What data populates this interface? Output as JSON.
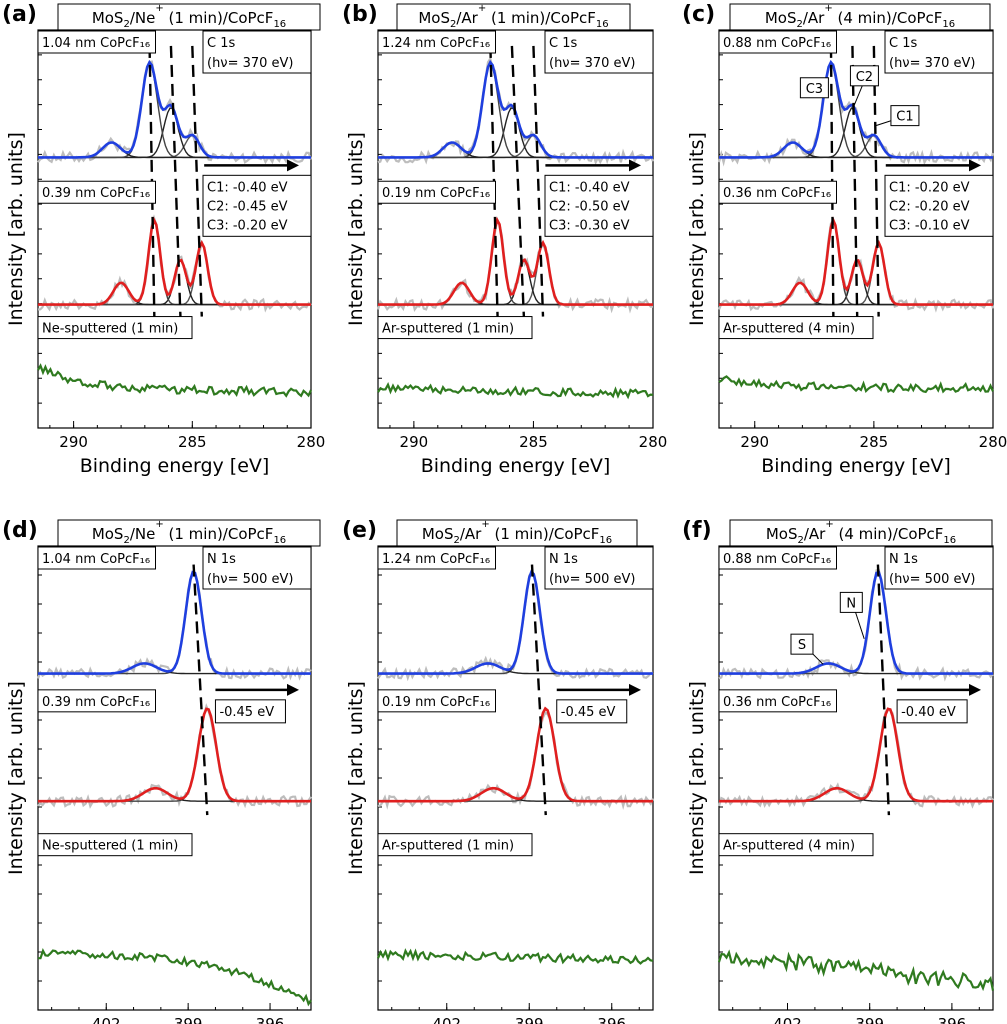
{
  "chart_data": [
    {
      "panel": "(a)",
      "type": "line",
      "title": "MoS₂/Ne⁺ (1 min)/CoPcF₁₆",
      "title_parts": [
        "MoS",
        "2",
        "/Ne",
        "+",
        " (1 min)/CoPcF",
        "16"
      ],
      "core_level": "C 1s",
      "photon_energy": "(hν= 370 eV)",
      "xlabel": "Binding energy [eV]",
      "ylabel": "Intensity [arb. units]",
      "xlim": [
        291.5,
        280
      ],
      "xticks": [
        "290",
        "285",
        "280"
      ],
      "spectra": [
        {
          "label": "1.04 nm CoPcF₁₆",
          "color": "#1f3fdf",
          "peaks": [
            {
              "name": "C1",
              "x": 285.0
            },
            {
              "name": "C2",
              "x": 285.9
            },
            {
              "name": "C3",
              "x": 286.8
            },
            {
              "name": "",
              "x": 288.4
            }
          ]
        },
        {
          "label": "0.39 nm CoPcF₁₆",
          "color": "#e01f1f",
          "peaks": [
            {
              "name": "C1",
              "x": 284.6
            },
            {
              "name": "C2",
              "x": 285.5
            },
            {
              "name": "C3",
              "x": 286.6
            },
            {
              "name": "",
              "x": 288.0
            }
          ]
        },
        {
          "label": "Ne-sputtered (1 min)",
          "color": "#2f7a1f"
        }
      ],
      "shifts": [
        "C1: -0.40 eV",
        "C2: -0.45 eV",
        "C3: -0.20 eV"
      ]
    },
    {
      "panel": "(b)",
      "type": "line",
      "title": "MoS₂/Ar⁺ (1 min)/CoPcF₁₆",
      "title_parts": [
        "MoS",
        "2",
        "/Ar",
        "+",
        " (1 min)/CoPcF",
        "16"
      ],
      "core_level": "C 1s",
      "photon_energy": "(hν= 370 eV)",
      "xlabel": "Binding energy [eV]",
      "ylabel": "Intensity [arb. units]",
      "xlim": [
        291.5,
        280
      ],
      "xticks": [
        "290",
        "285",
        "280"
      ],
      "spectra": [
        {
          "label": "1.24 nm CoPcF₁₆",
          "color": "#1f3fdf",
          "peaks": [
            {
              "name": "C1",
              "x": 285.0
            },
            {
              "name": "C2",
              "x": 285.9
            },
            {
              "name": "C3",
              "x": 286.8
            },
            {
              "name": "",
              "x": 288.4
            }
          ]
        },
        {
          "label": "0.19 nm CoPcF₁₆",
          "color": "#e01f1f",
          "peaks": [
            {
              "name": "C1",
              "x": 284.6
            },
            {
              "name": "C2",
              "x": 285.4
            },
            {
              "name": "C3",
              "x": 286.5
            },
            {
              "name": "",
              "x": 288.0
            }
          ]
        },
        {
          "label": "Ar-sputtered (1 min)",
          "color": "#2f7a1f"
        }
      ],
      "shifts": [
        "C1: -0.40 eV",
        "C2: -0.50 eV",
        "C3: -0.30 eV"
      ]
    },
    {
      "panel": "(c)",
      "type": "line",
      "title": "MoS₂/Ar⁺ (4 min)/CoPcF₁₆",
      "title_parts": [
        "MoS",
        "2",
        "/Ar",
        "+",
        " (4 min)/CoPcF",
        "16"
      ],
      "core_level": "C 1s",
      "photon_energy": "(hν= 370 eV)",
      "xlabel": "Binding energy [eV]",
      "ylabel": "Intensity [arb. units]",
      "xlim": [
        291.5,
        280
      ],
      "xticks": [
        "290",
        "285",
        "280"
      ],
      "peak_labels": [
        "C3",
        "C2",
        "C1"
      ],
      "spectra": [
        {
          "label": "0.88 nm CoPcF₁₆",
          "color": "#1f3fdf",
          "peaks": [
            {
              "name": "C1",
              "x": 285.0
            },
            {
              "name": "C2",
              "x": 285.9
            },
            {
              "name": "C3",
              "x": 286.8
            },
            {
              "name": "",
              "x": 288.4
            }
          ]
        },
        {
          "label": "0.36 nm CoPcF₁₆",
          "color": "#e01f1f",
          "peaks": [
            {
              "name": "C1",
              "x": 284.8
            },
            {
              "name": "C2",
              "x": 285.7
            },
            {
              "name": "C3",
              "x": 286.7
            },
            {
              "name": "",
              "x": 288.1
            }
          ]
        },
        {
          "label": "Ar-sputtered (4 min)",
          "color": "#2f7a1f"
        }
      ],
      "shifts": [
        "C1: -0.20 eV",
        "C2: -0.20 eV",
        "C3: -0.10 eV"
      ]
    },
    {
      "panel": "(d)",
      "type": "line",
      "title": "MoS₂/Ne⁺ (1 min)/CoPcF₁₆",
      "title_parts": [
        "MoS",
        "2",
        "/Ne",
        "+",
        " (1 min)/CoPcF",
        "16"
      ],
      "core_level": "N 1s",
      "photon_energy": "(hν= 500 eV)",
      "xlabel": "Binding energy [eV]",
      "ylabel": "Intensity [arb. units]",
      "xlim": [
        404.5,
        394.5
      ],
      "xticks": [
        "402",
        "399",
        "396"
      ],
      "spectra": [
        {
          "label": "1.04 nm CoPcF₁₆",
          "color": "#1f3fdf",
          "peaks": [
            {
              "name": "N",
              "x": 398.8
            },
            {
              "name": "S",
              "x": 400.6
            }
          ]
        },
        {
          "label": "0.39 nm CoPcF₁₆",
          "color": "#e01f1f",
          "peaks": [
            {
              "name": "N",
              "x": 398.3
            },
            {
              "name": "S",
              "x": 400.2
            }
          ]
        },
        {
          "label": "Ne-sputtered (1 min)",
          "color": "#2f7a1f"
        }
      ],
      "shifts": [
        "-0.45 eV"
      ]
    },
    {
      "panel": "(e)",
      "type": "line",
      "title": "MoS₂/Ar⁺ (1 min)/CoPcF₁₆",
      "title_parts": [
        "MoS",
        "2",
        "/Ar",
        "+",
        " (1 min)/CoPcF",
        "16"
      ],
      "core_level": "N 1s",
      "photon_energy": "(hν= 500 eV)",
      "xlabel": "Binding energy [eV]",
      "ylabel": "Intensity [arb. units]",
      "xlim": [
        404.5,
        394.5
      ],
      "xticks": [
        "402",
        "399",
        "396"
      ],
      "spectra": [
        {
          "label": "1.24 nm CoPcF₁₆",
          "color": "#1f3fdf",
          "peaks": [
            {
              "name": "N",
              "x": 398.9
            },
            {
              "name": "S",
              "x": 400.5
            }
          ]
        },
        {
          "label": "0.19 nm CoPcF₁₆",
          "color": "#e01f1f",
          "peaks": [
            {
              "name": "N",
              "x": 398.4
            },
            {
              "name": "S",
              "x": 400.3
            }
          ]
        },
        {
          "label": "Ar-sputtered (1 min)",
          "color": "#2f7a1f"
        }
      ],
      "shifts": [
        "-0.45 eV"
      ]
    },
    {
      "panel": "(f)",
      "type": "line",
      "title": "MoS₂/Ar⁺ (4 min)/CoPcF₁₆",
      "title_parts": [
        "MoS",
        "2",
        "/Ar",
        "+",
        " (4 min)/CoPcF",
        "16"
      ],
      "core_level": "N 1s",
      "photon_energy": "(hν= 500 eV)",
      "xlabel": "Binding energy [eV]",
      "ylabel": "Intensity [arb. units]",
      "xlim": [
        404.5,
        394.5
      ],
      "xticks": [
        "402",
        "399",
        "396"
      ],
      "peak_labels": [
        "S",
        "N"
      ],
      "spectra": [
        {
          "label": "0.88 nm CoPcF₁₆",
          "color": "#1f3fdf",
          "peaks": [
            {
              "name": "N",
              "x": 398.7
            },
            {
              "name": "S",
              "x": 400.5
            }
          ]
        },
        {
          "label": "0.36 nm CoPcF₁₆",
          "color": "#e01f1f",
          "peaks": [
            {
              "name": "N",
              "x": 398.3
            },
            {
              "name": "S",
              "x": 400.2
            }
          ]
        },
        {
          "label": "Ar-sputtered (4 min)",
          "color": "#2f7a1f"
        }
      ],
      "shifts": [
        "-0.40 eV"
      ]
    }
  ]
}
